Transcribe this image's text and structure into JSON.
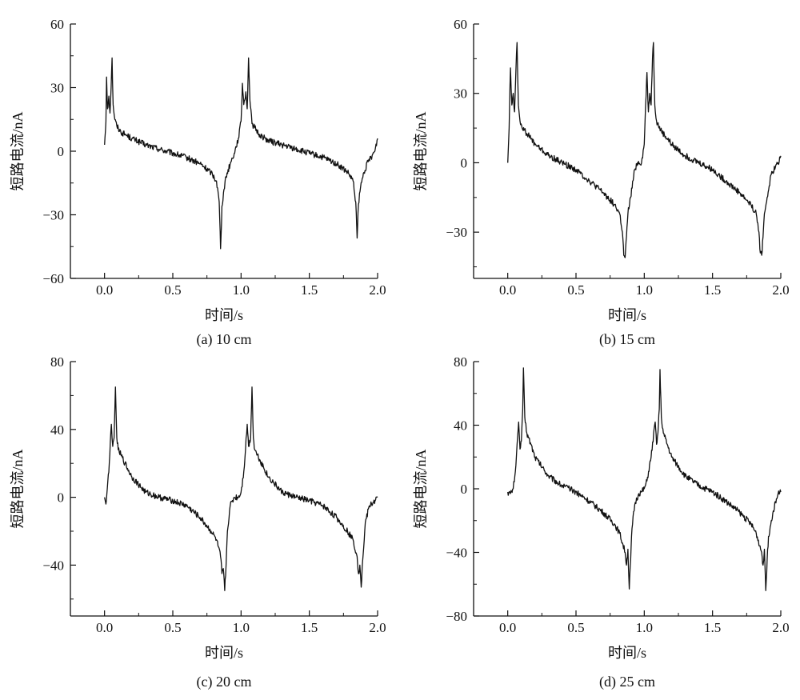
{
  "chart_data": [
    {
      "type": "line",
      "caption": "(a) 10 cm",
      "xlabel": "时间/s",
      "ylabel": "短路电流/nA",
      "xlim": [
        -0.25,
        2.0
      ],
      "ylim": [
        -60,
        60
      ],
      "xticks": [
        0.0,
        0.5,
        1.0,
        1.5,
        2.0
      ],
      "xtick_labels": [
        "0.0",
        "0.5",
        "1.0",
        "1.5",
        "2.0"
      ],
      "yticks": [
        -60,
        -30,
        0,
        30,
        60
      ],
      "ytick_labels": [
        "−60",
        "−30",
        "0",
        "30",
        "60"
      ],
      "series": [
        {
          "name": "10 cm",
          "points": [
            [
              0.0,
              3
            ],
            [
              0.01,
              14
            ],
            [
              0.015,
              35
            ],
            [
              0.022,
              20
            ],
            [
              0.032,
              26
            ],
            [
              0.04,
              18
            ],
            [
              0.048,
              30
            ],
            [
              0.055,
              44
            ],
            [
              0.063,
              22
            ],
            [
              0.075,
              15
            ],
            [
              0.09,
              12
            ],
            [
              0.12,
              9
            ],
            [
              0.15,
              8
            ],
            [
              0.2,
              6
            ],
            [
              0.3,
              3
            ],
            [
              0.4,
              1
            ],
            [
              0.5,
              -1
            ],
            [
              0.6,
              -3
            ],
            [
              0.7,
              -6
            ],
            [
              0.78,
              -10
            ],
            [
              0.82,
              -14
            ],
            [
              0.84,
              -24
            ],
            [
              0.85,
              -46
            ],
            [
              0.86,
              -26
            ],
            [
              0.875,
              -18
            ],
            [
              0.89,
              -12
            ],
            [
              0.92,
              -6
            ],
            [
              0.95,
              -1
            ],
            [
              0.98,
              6
            ],
            [
              1.0,
              14
            ],
            [
              1.01,
              32
            ],
            [
              1.02,
              22
            ],
            [
              1.035,
              28
            ],
            [
              1.045,
              20
            ],
            [
              1.055,
              44
            ],
            [
              1.065,
              24
            ],
            [
              1.08,
              13
            ],
            [
              1.1,
              11
            ],
            [
              1.13,
              8
            ],
            [
              1.2,
              5
            ],
            [
              1.3,
              3
            ],
            [
              1.4,
              1
            ],
            [
              1.5,
              -1
            ],
            [
              1.6,
              -3
            ],
            [
              1.7,
              -6
            ],
            [
              1.78,
              -10
            ],
            [
              1.82,
              -14
            ],
            [
              1.84,
              -24
            ],
            [
              1.85,
              -41
            ],
            [
              1.86,
              -25
            ],
            [
              1.875,
              -17
            ],
            [
              1.9,
              -10
            ],
            [
              1.93,
              -5
            ],
            [
              1.96,
              -2
            ],
            [
              1.98,
              0
            ],
            [
              2.0,
              6
            ]
          ]
        }
      ]
    },
    {
      "type": "line",
      "caption": "(b) 15 cm",
      "xlabel": "时间/s",
      "ylabel": "短路电流/nA",
      "xlim": [
        -0.25,
        2.0
      ],
      "ylim": [
        -50,
        60
      ],
      "xticks": [
        0.0,
        0.5,
        1.0,
        1.5,
        2.0
      ],
      "xtick_labels": [
        "0.0",
        "0.5",
        "1.0",
        "1.5",
        "2.0"
      ],
      "yticks": [
        -30,
        0,
        30,
        60
      ],
      "ytick_labels": [
        "−30",
        "0",
        "30",
        "60"
      ],
      "series": [
        {
          "name": "15 cm",
          "points": [
            [
              0.0,
              0
            ],
            [
              0.01,
              15
            ],
            [
              0.02,
              41
            ],
            [
              0.03,
              25
            ],
            [
              0.04,
              30
            ],
            [
              0.05,
              22
            ],
            [
              0.06,
              40
            ],
            [
              0.068,
              52
            ],
            [
              0.078,
              25
            ],
            [
              0.09,
              18
            ],
            [
              0.12,
              14
            ],
            [
              0.15,
              12
            ],
            [
              0.2,
              8
            ],
            [
              0.3,
              3
            ],
            [
              0.4,
              0
            ],
            [
              0.5,
              -3
            ],
            [
              0.6,
              -8
            ],
            [
              0.7,
              -13
            ],
            [
              0.78,
              -18
            ],
            [
              0.82,
              -22
            ],
            [
              0.84,
              -30
            ],
            [
              0.85,
              -40
            ],
            [
              0.86,
              -41
            ],
            [
              0.87,
              -32
            ],
            [
              0.88,
              -22
            ],
            [
              0.9,
              -15
            ],
            [
              0.93,
              -3
            ],
            [
              0.95,
              0
            ],
            [
              0.98,
              0
            ],
            [
              1.0,
              8
            ],
            [
              1.01,
              25
            ],
            [
              1.02,
              39
            ],
            [
              1.03,
              22
            ],
            [
              1.04,
              30
            ],
            [
              1.05,
              25
            ],
            [
              1.06,
              45
            ],
            [
              1.067,
              52
            ],
            [
              1.077,
              25
            ],
            [
              1.09,
              18
            ],
            [
              1.12,
              14
            ],
            [
              1.2,
              8
            ],
            [
              1.3,
              3
            ],
            [
              1.4,
              0
            ],
            [
              1.5,
              -3
            ],
            [
              1.6,
              -8
            ],
            [
              1.7,
              -13
            ],
            [
              1.78,
              -18
            ],
            [
              1.82,
              -22
            ],
            [
              1.84,
              -30
            ],
            [
              1.85,
              -39
            ],
            [
              1.86,
              -40
            ],
            [
              1.87,
              -32
            ],
            [
              1.88,
              -22
            ],
            [
              1.9,
              -15
            ],
            [
              1.93,
              -5
            ],
            [
              1.96,
              -2
            ],
            [
              1.98,
              0
            ],
            [
              2.0,
              3
            ]
          ]
        }
      ]
    },
    {
      "type": "line",
      "caption": "(c) 20 cm",
      "xlabel": "时间/s",
      "ylabel": "短路电流/nA",
      "xlim": [
        -0.25,
        2.0
      ],
      "ylim": [
        -70,
        80
      ],
      "xticks": [
        0.0,
        0.5,
        1.0,
        1.5,
        2.0
      ],
      "xtick_labels": [
        "0.0",
        "0.5",
        "1.0",
        "1.5",
        "2.0"
      ],
      "yticks": [
        -40,
        0,
        40,
        80
      ],
      "ytick_labels": [
        "−40",
        "0",
        "40",
        "80"
      ],
      "series": [
        {
          "name": "20 cm",
          "points": [
            [
              0.0,
              0
            ],
            [
              0.005,
              -2
            ],
            [
              0.01,
              -4
            ],
            [
              0.02,
              5
            ],
            [
              0.035,
              20
            ],
            [
              0.05,
              43
            ],
            [
              0.06,
              30
            ],
            [
              0.07,
              35
            ],
            [
              0.08,
              65
            ],
            [
              0.09,
              35
            ],
            [
              0.1,
              28
            ],
            [
              0.12,
              25
            ],
            [
              0.15,
              20
            ],
            [
              0.2,
              12
            ],
            [
              0.3,
              3
            ],
            [
              0.4,
              0
            ],
            [
              0.5,
              -2
            ],
            [
              0.6,
              -5
            ],
            [
              0.7,
              -12
            ],
            [
              0.78,
              -20
            ],
            [
              0.82,
              -25
            ],
            [
              0.85,
              -35
            ],
            [
              0.86,
              -45
            ],
            [
              0.87,
              -42
            ],
            [
              0.88,
              -55
            ],
            [
              0.89,
              -40
            ],
            [
              0.9,
              -20
            ],
            [
              0.92,
              -5
            ],
            [
              0.95,
              0
            ],
            [
              0.98,
              0
            ],
            [
              1.0,
              3
            ],
            [
              1.02,
              15
            ],
            [
              1.045,
              43
            ],
            [
              1.055,
              30
            ],
            [
              1.07,
              35
            ],
            [
              1.08,
              65
            ],
            [
              1.09,
              35
            ],
            [
              1.1,
              28
            ],
            [
              1.12,
              25
            ],
            [
              1.2,
              12
            ],
            [
              1.3,
              3
            ],
            [
              1.4,
              0
            ],
            [
              1.5,
              -2
            ],
            [
              1.6,
              -5
            ],
            [
              1.7,
              -12
            ],
            [
              1.78,
              -20
            ],
            [
              1.82,
              -25
            ],
            [
              1.85,
              -35
            ],
            [
              1.86,
              -45
            ],
            [
              1.87,
              -40
            ],
            [
              1.88,
              -53
            ],
            [
              1.89,
              -38
            ],
            [
              1.91,
              -15
            ],
            [
              1.94,
              -5
            ],
            [
              1.97,
              -3
            ],
            [
              2.0,
              0
            ]
          ]
        }
      ]
    },
    {
      "type": "line",
      "caption": "(d) 25 cm",
      "xlabel": "时间/s",
      "ylabel": "短路电流/nA",
      "xlim": [
        -0.25,
        2.0
      ],
      "ylim": [
        -80,
        80
      ],
      "xticks": [
        0.0,
        0.5,
        1.0,
        1.5,
        2.0
      ],
      "xtick_labels": [
        "0.0",
        "0.5",
        "1.0",
        "1.5",
        "2.0"
      ],
      "yticks": [
        -80,
        -40,
        0,
        40,
        80
      ],
      "ytick_labels": [
        "−80",
        "−40",
        "0",
        "40",
        "80"
      ],
      "series": [
        {
          "name": "25 cm",
          "points": [
            [
              0.0,
              -2
            ],
            [
              0.02,
              -3
            ],
            [
              0.04,
              0
            ],
            [
              0.06,
              15
            ],
            [
              0.08,
              42
            ],
            [
              0.09,
              25
            ],
            [
              0.1,
              30
            ],
            [
              0.11,
              50
            ],
            [
              0.115,
              76
            ],
            [
              0.125,
              45
            ],
            [
              0.14,
              35
            ],
            [
              0.17,
              28
            ],
            [
              0.2,
              20
            ],
            [
              0.3,
              8
            ],
            [
              0.4,
              2
            ],
            [
              0.5,
              -2
            ],
            [
              0.6,
              -8
            ],
            [
              0.7,
              -15
            ],
            [
              0.78,
              -22
            ],
            [
              0.82,
              -28
            ],
            [
              0.86,
              -40
            ],
            [
              0.87,
              -48
            ],
            [
              0.88,
              -38
            ],
            [
              0.89,
              -63
            ],
            [
              0.9,
              -45
            ],
            [
              0.91,
              -25
            ],
            [
              0.93,
              -10
            ],
            [
              0.96,
              -3
            ],
            [
              0.98,
              -2
            ],
            [
              1.0,
              0
            ],
            [
              1.02,
              5
            ],
            [
              1.05,
              20
            ],
            [
              1.08,
              42
            ],
            [
              1.09,
              28
            ],
            [
              1.1,
              35
            ],
            [
              1.11,
              50
            ],
            [
              1.115,
              75
            ],
            [
              1.125,
              45
            ],
            [
              1.14,
              35
            ],
            [
              1.2,
              20
            ],
            [
              1.3,
              8
            ],
            [
              1.4,
              2
            ],
            [
              1.5,
              -2
            ],
            [
              1.6,
              -8
            ],
            [
              1.7,
              -15
            ],
            [
              1.78,
              -22
            ],
            [
              1.82,
              -28
            ],
            [
              1.86,
              -40
            ],
            [
              1.87,
              -48
            ],
            [
              1.88,
              -38
            ],
            [
              1.89,
              -64
            ],
            [
              1.9,
              -45
            ],
            [
              1.91,
              -30
            ],
            [
              1.93,
              -20
            ],
            [
              1.96,
              -8
            ],
            [
              1.98,
              -3
            ],
            [
              2.0,
              -2
            ]
          ]
        }
      ]
    }
  ]
}
